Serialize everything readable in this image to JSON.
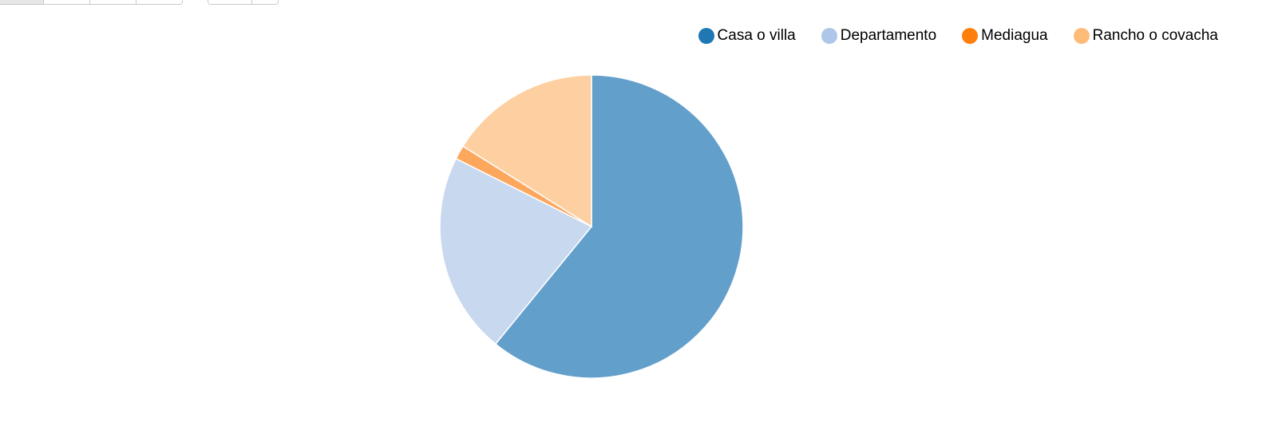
{
  "chart_data": {
    "type": "pie",
    "slices": [
      {
        "label": "Casa o villa",
        "value": 60.9,
        "legend_color": "#1f77b4",
        "slice_color": "#629fcb"
      },
      {
        "label": "Departamento",
        "value": 21.5,
        "legend_color": "#aec7e8",
        "slice_color": "#c7d8ef"
      },
      {
        "label": "Mediagua",
        "value": 1.5,
        "legend_color": "#ff7f0e",
        "slice_color": "#fda75d"
      },
      {
        "label": "Rancho o covacha",
        "value": 16.1,
        "legend_color": "#ffbb78",
        "slice_color": "#fecfa0"
      }
    ],
    "start_angle_deg": 0,
    "direction": "clockwise",
    "legend_position": "top-right"
  }
}
